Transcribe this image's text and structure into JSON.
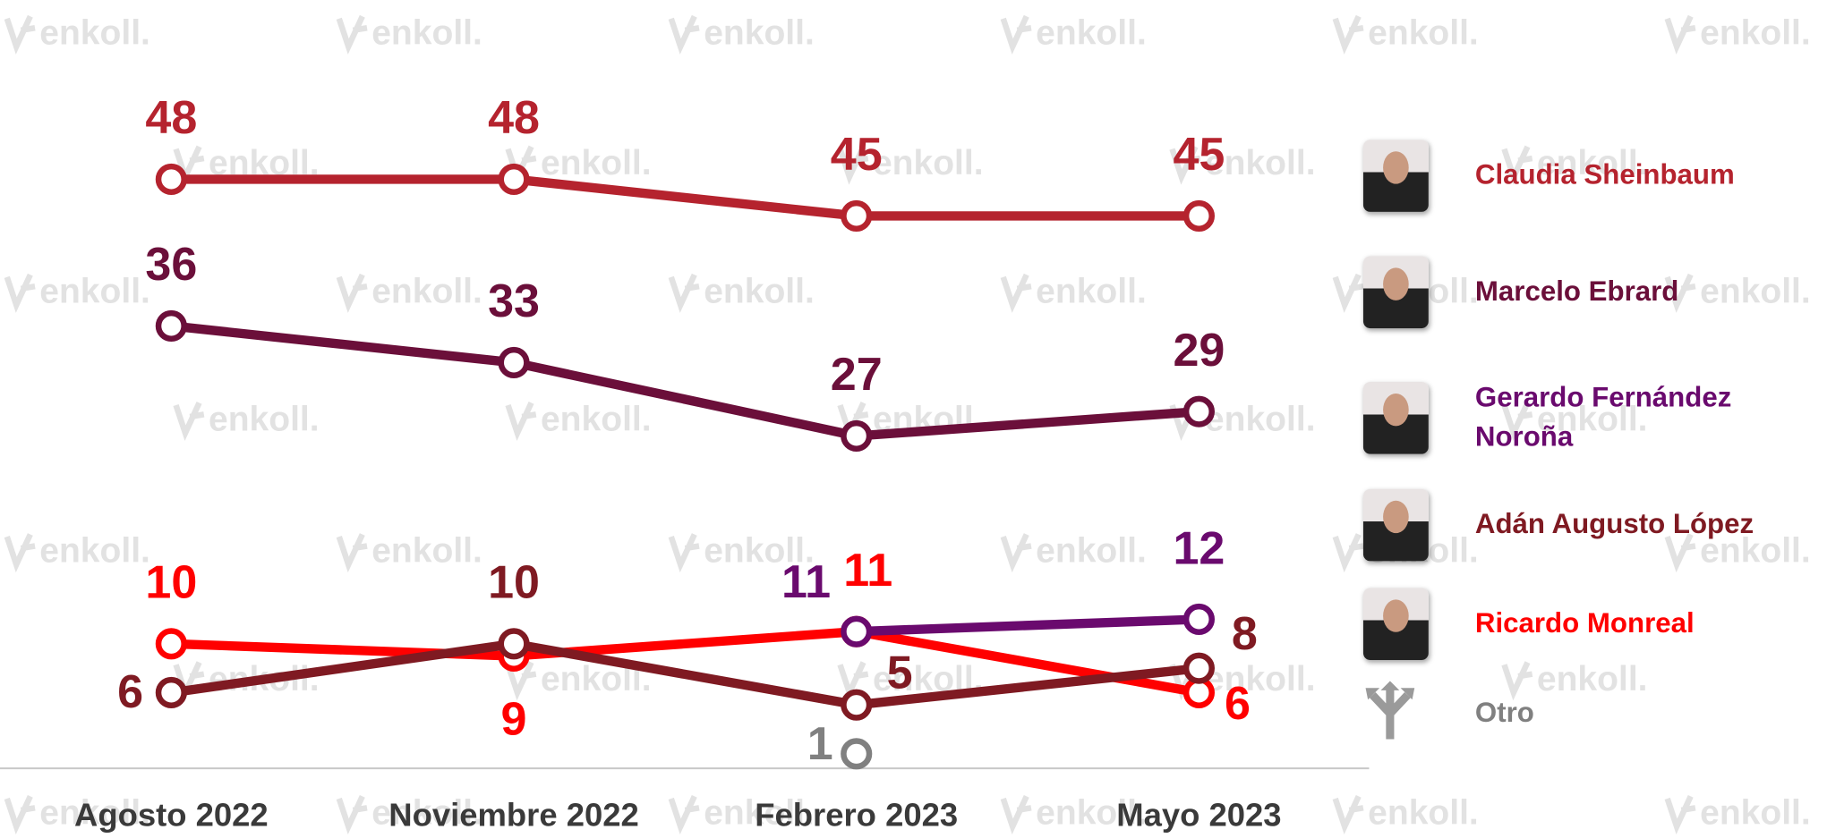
{
  "chart_data": {
    "type": "line",
    "watermark": "enkoll.",
    "categories": [
      "Agosto 2022",
      "Noviembre 2022",
      "Febrero 2023",
      "Mayo 2023"
    ],
    "series": [
      {
        "name": "Claudia Sheinbaum",
        "color": "#b5232e",
        "values": [
          48,
          48,
          45,
          45
        ]
      },
      {
        "name": "Marcelo Ebrard",
        "color": "#6b0f3a",
        "values": [
          36,
          33,
          27,
          29
        ]
      },
      {
        "name": "Gerardo Fernández Noroña",
        "color": "#6a0a6e",
        "values": [
          null,
          null,
          11,
          12
        ]
      },
      {
        "name": "Adán Augusto López",
        "color": "#7f1a22",
        "values": [
          6,
          10,
          5,
          8
        ]
      },
      {
        "name": "Ricardo Monreal",
        "color": "#ff0000",
        "values": [
          10,
          9,
          11,
          6
        ]
      },
      {
        "name": "Otro",
        "color": "#808080",
        "values": [
          null,
          null,
          1,
          null
        ]
      }
    ],
    "grid": false
  }
}
